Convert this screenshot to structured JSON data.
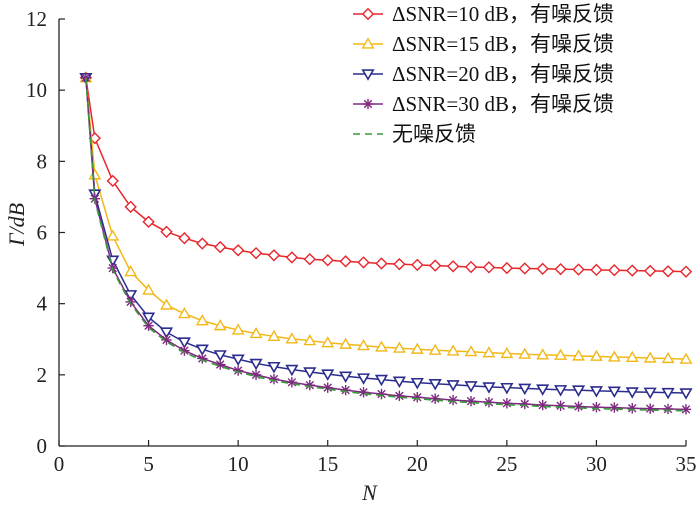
{
  "chart_data": {
    "type": "line",
    "xlabel": "N",
    "ylabel": "Γ/dB",
    "xlim": [
      0,
      35
    ],
    "ylim": [
      0,
      12
    ],
    "xticks": [
      0,
      5,
      10,
      15,
      20,
      25,
      30,
      35
    ],
    "yticks": [
      0,
      2,
      4,
      6,
      8,
      10,
      12
    ],
    "grid": false,
    "legend_position": "top-right",
    "x": [
      1.5,
      2,
      3,
      4,
      5,
      6,
      7,
      8,
      9,
      10,
      11,
      12,
      13,
      14,
      15,
      16,
      17,
      18,
      19,
      20,
      21,
      22,
      23,
      24,
      25,
      26,
      27,
      28,
      29,
      30,
      31,
      32,
      33,
      34,
      35
    ],
    "series": [
      {
        "name": "ΔSNR=10 dB，有噪反馈",
        "color": "#e8252b",
        "marker": "diamond",
        "dashed": false,
        "values": [
          10.35,
          8.65,
          7.45,
          6.72,
          6.3,
          6.02,
          5.84,
          5.69,
          5.59,
          5.5,
          5.42,
          5.36,
          5.3,
          5.25,
          5.22,
          5.19,
          5.16,
          5.13,
          5.11,
          5.09,
          5.07,
          5.05,
          5.03,
          5.02,
          5.0,
          4.99,
          4.98,
          4.97,
          4.96,
          4.95,
          4.94,
          4.93,
          4.92,
          4.91,
          4.9
        ]
      },
      {
        "name": "ΔSNR=15 dB，有噪反馈",
        "color": "#f2b817",
        "marker": "triangle-up",
        "dashed": false,
        "values": [
          10.35,
          7.62,
          5.9,
          4.9,
          4.38,
          3.96,
          3.72,
          3.52,
          3.38,
          3.26,
          3.16,
          3.08,
          3.01,
          2.96,
          2.9,
          2.86,
          2.82,
          2.78,
          2.75,
          2.72,
          2.69,
          2.67,
          2.65,
          2.62,
          2.6,
          2.58,
          2.56,
          2.55,
          2.53,
          2.52,
          2.5,
          2.49,
          2.47,
          2.46,
          2.44
        ]
      },
      {
        "name": "ΔSNR=20 dB，有噪反馈",
        "color": "#2b2d8e",
        "marker": "triangle-down",
        "dashed": false,
        "values": [
          10.35,
          7.08,
          5.22,
          4.25,
          3.62,
          3.2,
          2.92,
          2.72,
          2.56,
          2.44,
          2.32,
          2.23,
          2.15,
          2.08,
          2.02,
          1.96,
          1.91,
          1.87,
          1.82,
          1.78,
          1.75,
          1.72,
          1.69,
          1.66,
          1.64,
          1.62,
          1.6,
          1.58,
          1.57,
          1.55,
          1.54,
          1.52,
          1.51,
          1.5,
          1.49
        ]
      },
      {
        "name": "ΔSNR=30 dB，有噪反馈",
        "color": "#7d2a80",
        "marker": "asterisk",
        "dashed": false,
        "values": [
          10.35,
          6.95,
          5.0,
          4.05,
          3.38,
          2.98,
          2.68,
          2.46,
          2.29,
          2.12,
          2.0,
          1.88,
          1.79,
          1.71,
          1.64,
          1.57,
          1.51,
          1.46,
          1.41,
          1.37,
          1.33,
          1.29,
          1.26,
          1.23,
          1.2,
          1.18,
          1.15,
          1.13,
          1.11,
          1.09,
          1.08,
          1.06,
          1.05,
          1.04,
          1.03
        ]
      },
      {
        "name": "无噪反馈",
        "color": "#3a9a3a",
        "marker": "none",
        "dashed": true,
        "values": [
          10.35,
          6.9,
          4.95,
          4.0,
          3.33,
          2.93,
          2.63,
          2.41,
          2.24,
          2.08,
          1.95,
          1.84,
          1.75,
          1.67,
          1.6,
          1.53,
          1.47,
          1.42,
          1.37,
          1.33,
          1.29,
          1.25,
          1.22,
          1.19,
          1.16,
          1.14,
          1.11,
          1.09,
          1.07,
          1.05,
          1.04,
          1.02,
          1.01,
          1.0,
          0.99
        ]
      }
    ]
  }
}
